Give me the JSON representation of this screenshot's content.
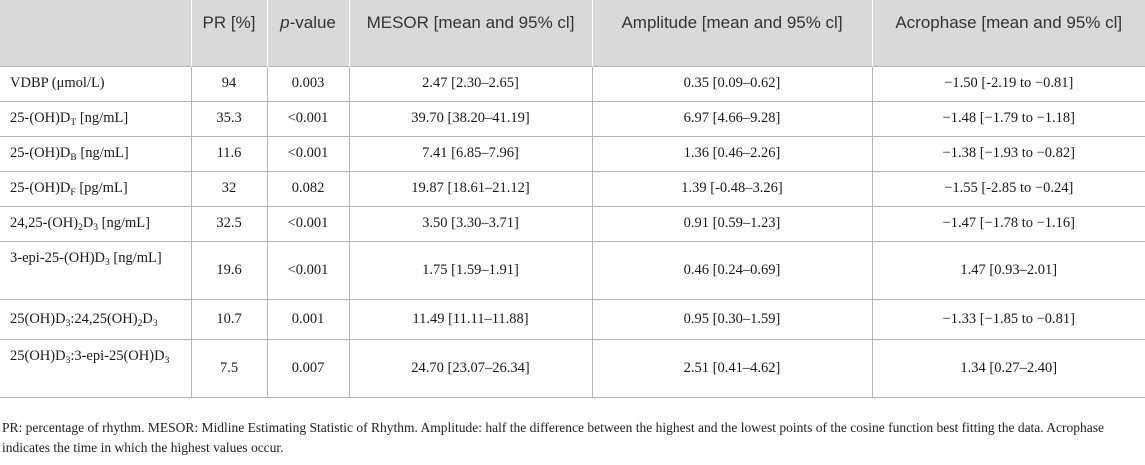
{
  "headers": [
    "",
    "PR [%]",
    "p-value",
    "MESOR [mean and 95% cl]",
    "Amplitude [mean and 95% cl]",
    "Acrophase [mean and 95% cl]"
  ],
  "rows": [
    {
      "label": "VDBP (μmol/L)",
      "pr": "94",
      "p": "0.003",
      "mesor": "2.47 [2.30–2.65]",
      "amplitude": "0.35 [0.09–0.62]",
      "acrophase": "−1.50 [-2.19 to −0.81]"
    },
    {
      "label": "25-(OH)DT [ng/mL]",
      "pr": "35.3",
      "p": "<0.001",
      "mesor": "39.70 [38.20–41.19]",
      "amplitude": "6.97 [4.66–9.28]",
      "acrophase": "−1.48 [−1.79 to −1.18]"
    },
    {
      "label": "25-(OH)DB [ng/mL]",
      "pr": "11.6",
      "p": "<0.001",
      "mesor": "7.41 [6.85–7.96]",
      "amplitude": "1.36 [0.46–2.26]",
      "acrophase": "−1.38 [−1.93 to −0.82]"
    },
    {
      "label": "25-(OH)DF [pg/mL]",
      "pr": "32",
      "p": "0.082",
      "mesor": "19.87 [18.61–21.12]",
      "amplitude": "1.39 [-0.48–3.26]",
      "acrophase": "−1.55 [-2.85 to −0.24]"
    },
    {
      "label": "24,25-(OH)2D3 [ng/mL]",
      "pr": "32.5",
      "p": "<0.001",
      "mesor": "3.50 [3.30–3.71]",
      "amplitude": "0.91 [0.59–1.23]",
      "acrophase": "−1.47 [−1.78 to −1.16]"
    },
    {
      "label": "3-epi-25-(OH)D3 [ng/mL]",
      "pr": "19.6",
      "p": "<0.001",
      "mesor": "1.75 [1.59–1.91]",
      "amplitude": "0.46 [0.24–0.69]",
      "acrophase": "1.47 [0.93–2.01]"
    },
    {
      "label": "25(OH)D3:24,25(OH)2D3",
      "pr": "10.7",
      "p": "0.001",
      "mesor": "11.49 [11.11–11.88]",
      "amplitude": "0.95 [0.30–1.59]",
      "acrophase": "−1.33 [−1.85 to −0.81]"
    },
    {
      "label": "25(OH)D3:3-epi-25(OH)D3",
      "pr": "7.5",
      "p": "0.007",
      "mesor": "24.70 [23.07–26.34]",
      "amplitude": "2.51 [0.41–4.62]",
      "acrophase": "1.34 [0.27–2.40]"
    }
  ],
  "footnote": "PR: percentage of rhythm. MESOR: Midline Estimating Statistic of Rhythm. Amplitude: half the difference between the highest and the lowest points of the cosine function best fitting the data. Acrophase indicates the time in which the highest values occur."
}
